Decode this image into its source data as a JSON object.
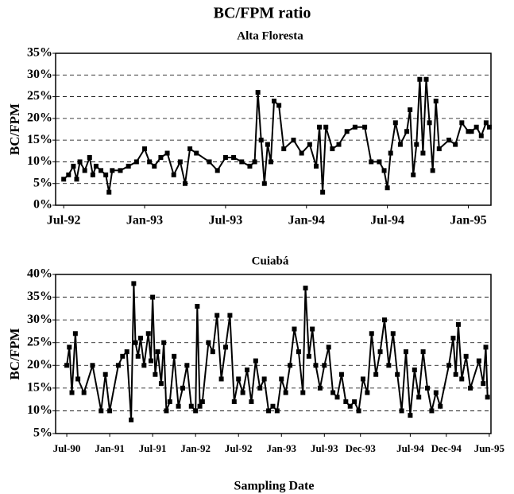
{
  "title": "BC/FPM ratio",
  "chart_data": [
    {
      "type": "line",
      "title": "Alta Floresta",
      "ylabel": "BC/FPM",
      "color": "#000000",
      "grid": true,
      "xlim": [
        1992.45,
        1995.14
      ],
      "ylim": [
        0,
        35
      ],
      "xticks": [
        {
          "value": 1992.5,
          "label": "Jul-92"
        },
        {
          "value": 1993.0,
          "label": "Jan-93"
        },
        {
          "value": 1993.5,
          "label": "Jul-93"
        },
        {
          "value": 1994.0,
          "label": "Jan-94"
        },
        {
          "value": 1994.5,
          "label": "Jul-94"
        },
        {
          "value": 1995.0,
          "label": "Jan-95"
        }
      ],
      "yticks": [
        {
          "value": 0,
          "label": "0%"
        },
        {
          "value": 5,
          "label": "5%"
        },
        {
          "value": 10,
          "label": "10%"
        },
        {
          "value": 15,
          "label": "15%"
        },
        {
          "value": 20,
          "label": "20%"
        },
        {
          "value": 25,
          "label": "25%"
        },
        {
          "value": 30,
          "label": "30%"
        },
        {
          "value": 35,
          "label": "35%"
        }
      ],
      "x": [
        1992.5,
        1992.53,
        1992.56,
        1992.58,
        1992.6,
        1992.63,
        1992.66,
        1992.68,
        1992.7,
        1992.73,
        1992.76,
        1992.78,
        1992.8,
        1992.85,
        1992.9,
        1992.95,
        1993.0,
        1993.03,
        1993.06,
        1993.1,
        1993.14,
        1993.18,
        1993.22,
        1993.25,
        1993.28,
        1993.32,
        1993.4,
        1993.45,
        1993.5,
        1993.55,
        1993.6,
        1993.65,
        1993.68,
        1993.7,
        1993.72,
        1993.74,
        1993.76,
        1993.78,
        1993.8,
        1993.83,
        1993.86,
        1993.92,
        1993.97,
        1994.02,
        1994.06,
        1994.08,
        1994.1,
        1994.12,
        1994.16,
        1994.2,
        1994.25,
        1994.3,
        1994.36,
        1994.4,
        1994.45,
        1994.48,
        1994.5,
        1994.52,
        1994.55,
        1994.58,
        1994.62,
        1994.64,
        1994.66,
        1994.68,
        1994.7,
        1994.72,
        1994.74,
        1994.76,
        1994.78,
        1994.8,
        1994.82,
        1994.88,
        1994.92,
        1994.96,
        1995.0,
        1995.02,
        1995.05,
        1995.08,
        1995.11,
        1995.13
      ],
      "values": [
        6,
        7,
        9,
        6,
        10,
        8,
        11,
        7,
        9,
        8,
        7,
        3,
        8,
        8,
        9,
        10,
        13,
        10,
        9,
        11,
        12,
        7,
        10,
        5,
        13,
        12,
        10,
        8,
        11,
        11,
        10,
        9,
        10,
        26,
        15,
        5,
        14,
        10,
        24,
        23,
        13,
        15,
        12,
        14,
        9,
        18,
        3,
        18,
        13,
        14,
        17,
        18,
        18,
        10,
        10,
        8,
        4,
        12,
        19,
        14,
        17,
        22,
        7,
        14,
        29,
        12,
        29,
        19,
        8,
        24,
        13,
        15,
        14,
        19,
        17,
        17,
        18,
        16,
        19,
        18
      ]
    },
    {
      "type": "line",
      "title": "Cuiabá",
      "ylabel": "BC/FPM",
      "xlabel": "Sampling Date",
      "color": "#000000",
      "grid": true,
      "xlim": [
        1990.37,
        1995.44
      ],
      "ylim": [
        5,
        40
      ],
      "xticks": [
        {
          "value": 1990.5,
          "label": "Jul-90"
        },
        {
          "value": 1991.0,
          "label": "Jan-91"
        },
        {
          "value": 1991.5,
          "label": "Jul-91"
        },
        {
          "value": 1992.0,
          "label": "Jan-92"
        },
        {
          "value": 1992.5,
          "label": "Jul-92"
        },
        {
          "value": 1993.0,
          "label": "Jan-93"
        },
        {
          "value": 1993.5,
          "label": "Jul-93"
        },
        {
          "value": 1993.92,
          "label": "Dec-93"
        },
        {
          "value": 1994.5,
          "label": "Jul-94"
        },
        {
          "value": 1994.92,
          "label": "Dec-94"
        },
        {
          "value": 1995.42,
          "label": "Jun-95"
        }
      ],
      "yticks": [
        {
          "value": 5,
          "label": "5%"
        },
        {
          "value": 10,
          "label": "10%"
        },
        {
          "value": 15,
          "label": "15%"
        },
        {
          "value": 20,
          "label": "20%"
        },
        {
          "value": 25,
          "label": "25%"
        },
        {
          "value": 30,
          "label": "30%"
        },
        {
          "value": 35,
          "label": "35%"
        },
        {
          "value": 40,
          "label": "40%"
        }
      ],
      "x": [
        1990.5,
        1990.53,
        1990.56,
        1990.6,
        1990.63,
        1990.7,
        1990.8,
        1990.9,
        1990.95,
        1991.0,
        1991.1,
        1991.15,
        1991.2,
        1991.25,
        1991.28,
        1991.3,
        1991.33,
        1991.36,
        1991.4,
        1991.45,
        1991.48,
        1991.5,
        1991.53,
        1991.56,
        1991.6,
        1991.63,
        1991.66,
        1991.7,
        1991.75,
        1991.8,
        1991.85,
        1991.9,
        1991.95,
        1992.0,
        1992.02,
        1992.05,
        1992.08,
        1992.15,
        1992.2,
        1992.25,
        1992.3,
        1992.35,
        1992.4,
        1992.45,
        1992.5,
        1992.55,
        1992.6,
        1992.65,
        1992.7,
        1992.75,
        1992.8,
        1992.85,
        1992.9,
        1992.95,
        1993.0,
        1993.05,
        1993.1,
        1993.15,
        1993.2,
        1993.25,
        1993.28,
        1993.32,
        1993.36,
        1993.4,
        1993.45,
        1993.5,
        1993.55,
        1993.6,
        1993.65,
        1993.7,
        1993.75,
        1993.8,
        1993.85,
        1993.9,
        1993.95,
        1994.0,
        1994.05,
        1994.1,
        1994.15,
        1994.2,
        1994.25,
        1994.3,
        1994.35,
        1994.4,
        1994.45,
        1994.5,
        1994.55,
        1994.6,
        1994.65,
        1994.7,
        1994.75,
        1994.8,
        1994.85,
        1994.95,
        1995.0,
        1995.03,
        1995.06,
        1995.1,
        1995.15,
        1995.2,
        1995.3,
        1995.35,
        1995.38,
        1995.4
      ],
      "values": [
        20,
        24,
        14,
        27,
        17,
        14,
        20,
        10,
        18,
        10,
        20,
        22,
        23,
        8,
        38,
        25,
        22,
        26,
        20,
        27,
        21,
        35,
        18,
        23,
        16,
        25,
        10,
        12,
        22,
        11,
        15,
        20,
        11,
        10,
        33,
        11,
        12,
        25,
        23,
        31,
        17,
        24,
        31,
        12,
        17,
        14,
        19,
        12,
        21,
        15,
        17,
        10,
        11,
        10,
        17,
        14,
        20,
        28,
        23,
        14,
        37,
        22,
        28,
        20,
        15,
        20,
        24,
        14,
        13,
        18,
        12,
        11,
        12,
        10,
        17,
        14,
        27,
        18,
        23,
        30,
        20,
        27,
        18,
        10,
        23,
        9,
        19,
        13,
        23,
        15,
        10,
        14,
        11,
        20,
        26,
        18,
        29,
        17,
        22,
        15,
        21,
        16,
        24,
        13
      ]
    }
  ]
}
